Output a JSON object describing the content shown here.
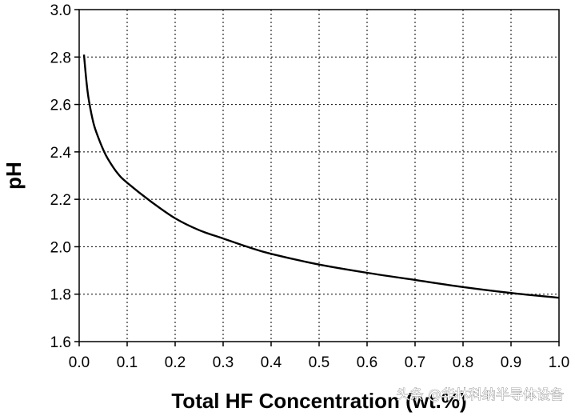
{
  "chart_data": {
    "type": "line",
    "title": "",
    "xlabel": "Total HF Concentration (wt.%)",
    "ylabel": "pH",
    "xlim": [
      0.0,
      1.0
    ],
    "ylim": [
      1.6,
      3.0
    ],
    "xticks": [
      "0.0",
      "0.1",
      "0.2",
      "0.3",
      "0.4",
      "0.5",
      "0.6",
      "0.7",
      "0.8",
      "0.9",
      "1.0"
    ],
    "yticks": [
      "1.6",
      "1.8",
      "2.0",
      "2.2",
      "2.4",
      "2.6",
      "2.8",
      "3.0"
    ],
    "grid": true,
    "series": [
      {
        "name": "",
        "color": "#000000",
        "x": [
          0.01,
          0.015,
          0.02,
          0.03,
          0.04,
          0.05,
          0.06,
          0.08,
          0.1,
          0.15,
          0.2,
          0.25,
          0.3,
          0.35,
          0.4,
          0.5,
          0.6,
          0.7,
          0.8,
          0.9,
          1.0
        ],
        "y": [
          2.81,
          2.7,
          2.62,
          2.52,
          2.46,
          2.41,
          2.37,
          2.31,
          2.27,
          2.19,
          2.12,
          2.07,
          2.035,
          2.0,
          1.97,
          1.925,
          1.89,
          1.86,
          1.83,
          1.805,
          1.785
        ]
      }
    ]
  },
  "watermark": "头条 @华林科纳半导体设备"
}
